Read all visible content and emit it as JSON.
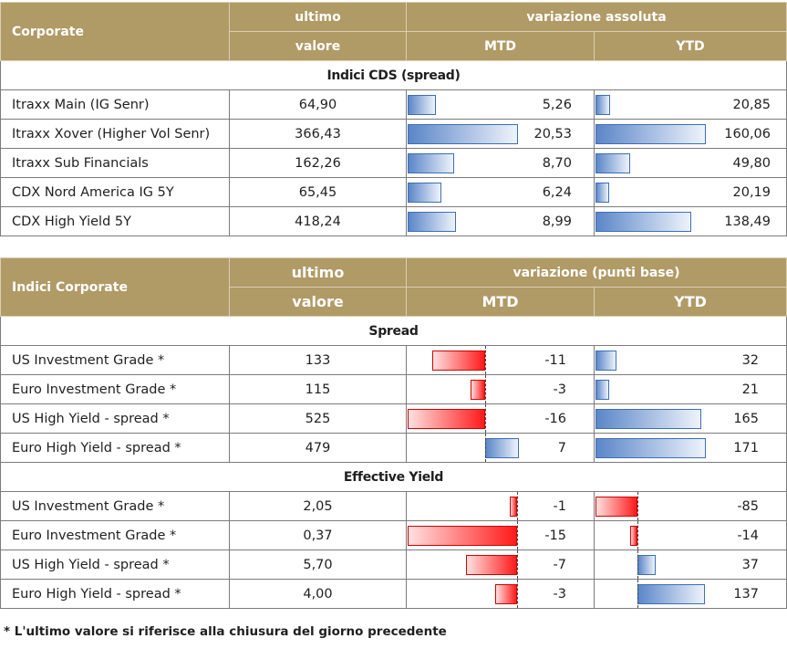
{
  "table1": {
    "header": {
      "label": "Corporate",
      "ultimo_line1": "ultimo",
      "ultimo_line2": "valore",
      "variation": "variazione assoluta",
      "mtd": "MTD",
      "ytd": "YTD"
    },
    "section": "Indici CDS (spread)",
    "rows": [
      {
        "name": "Itraxx Main (IG Senr)",
        "value": "64,90",
        "mtd": 5.26,
        "mtd_label": "5,26",
        "ytd": 20.85,
        "ytd_label": "20,85"
      },
      {
        "name": "Itraxx Xover (Higher Vol Senr)",
        "value": "366,43",
        "mtd": 20.53,
        "mtd_label": "20,53",
        "ytd": 160.06,
        "ytd_label": "160,06"
      },
      {
        "name": "Itraxx Sub Financials",
        "value": "162,26",
        "mtd": 8.7,
        "mtd_label": "8,70",
        "ytd": 49.8,
        "ytd_label": "49,80"
      },
      {
        "name": "CDX Nord America IG 5Y",
        "value": "65,45",
        "mtd": 6.24,
        "mtd_label": "6,24",
        "ytd": 20.19,
        "ytd_label": "20,19"
      },
      {
        "name": "CDX High Yield 5Y",
        "value": "418,24",
        "mtd": 8.99,
        "mtd_label": "8,99",
        "ytd": 138.49,
        "ytd_label": "138,49"
      }
    ]
  },
  "table2": {
    "header": {
      "label": "Indici Corporate",
      "ultimo_line1": "ultimo",
      "ultimo_line2": "valore",
      "variation": "variazione (punti base)",
      "mtd": "MTD",
      "ytd": "YTD"
    },
    "sections": [
      {
        "title": "Spread",
        "rows": [
          {
            "name": "US Investment Grade *",
            "value": "133",
            "mtd": -11,
            "mtd_label": "-11",
            "ytd": 32,
            "ytd_label": "32"
          },
          {
            "name": "Euro Investment Grade *",
            "value": "115",
            "mtd": -3,
            "mtd_label": "-3",
            "ytd": 21,
            "ytd_label": "21"
          },
          {
            "name": "US High Yield  - spread *",
            "value": "525",
            "mtd": -16,
            "mtd_label": "-16",
            "ytd": 165,
            "ytd_label": "165"
          },
          {
            "name": "Euro High Yield  - spread *",
            "value": "479",
            "mtd": 7,
            "mtd_label": "7",
            "ytd": 171,
            "ytd_label": "171"
          }
        ]
      },
      {
        "title": "Effective Yield",
        "rows": [
          {
            "name": "US Investment Grade *",
            "value": "2,05",
            "mtd": -1,
            "mtd_label": "-1",
            "ytd": -85,
            "ytd_label": "-85"
          },
          {
            "name": "Euro Investment Grade *",
            "value": "0,37",
            "mtd": -15,
            "mtd_label": "-15",
            "ytd": -14,
            "ytd_label": "-14"
          },
          {
            "name": "US High Yield  - spread *",
            "value": "5,70",
            "mtd": -7,
            "mtd_label": "-7",
            "ytd": 37,
            "ytd_label": "37"
          },
          {
            "name": "Euro High Yield  - spread *",
            "value": "4,00",
            "mtd": -3,
            "mtd_label": "-3",
            "ytd": 137,
            "ytd_label": "137"
          }
        ]
      }
    ]
  },
  "footnote": "* L'ultimo valore si riferisce alla chiusura del giorno precedente",
  "colors": {
    "header_bg": "#b09a66",
    "bar_positive": "#5b86c8",
    "bar_negative": "#ff1a1a"
  }
}
